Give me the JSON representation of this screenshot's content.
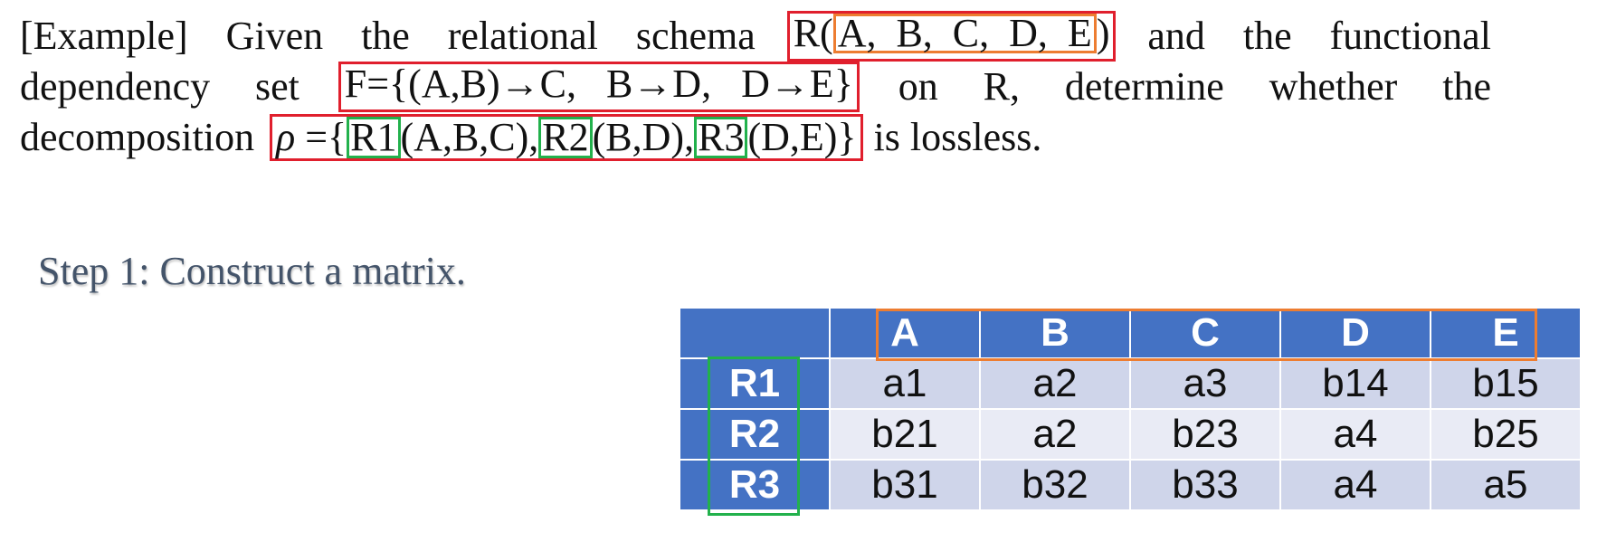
{
  "problem": {
    "line1": {
      "words": [
        "[Example]",
        "Given",
        "the",
        "relational",
        "schema"
      ],
      "schema_name": "R(",
      "schema_attrs": "A,  B,  C,  D,  E",
      "schema_close": ")",
      "tail_words": [
        "and",
        "the",
        "functional"
      ]
    },
    "line2": {
      "lead": [
        "dependency",
        "set"
      ],
      "fd_set": "F={(A,B)→C,   B→D,   D→E}",
      "tail_words": [
        "on",
        "R,",
        "determine",
        "whether",
        "the"
      ]
    },
    "line3": {
      "lead": "decomposition",
      "rho": "ρ",
      "eq_open": " ={",
      "r1": "R1",
      "r1_attrs": "(A,B,C),",
      "r2": "R2",
      "r2_attrs": "(B,D),",
      "r3": "R3",
      "r3_attrs": "(D,E)}",
      "tail": " is lossless."
    }
  },
  "step": {
    "title": "Step 1: Construct a matrix."
  },
  "matrix": {
    "columns": [
      "A",
      "B",
      "C",
      "D",
      "E"
    ],
    "rows": [
      {
        "label": "R1",
        "cells": [
          "a1",
          "a2",
          "a3",
          "b14",
          "b15"
        ]
      },
      {
        "label": "R2",
        "cells": [
          "b21",
          "a2",
          "b23",
          "a4",
          "b25"
        ]
      },
      {
        "label": "R3",
        "cells": [
          "b31",
          "b32",
          "b33",
          "a4",
          "a5"
        ]
      }
    ]
  },
  "colors": {
    "highlight_red": "#e01f2d",
    "highlight_orange": "#ed7d31",
    "highlight_green": "#22b14c",
    "header_blue": "#4472c4"
  }
}
